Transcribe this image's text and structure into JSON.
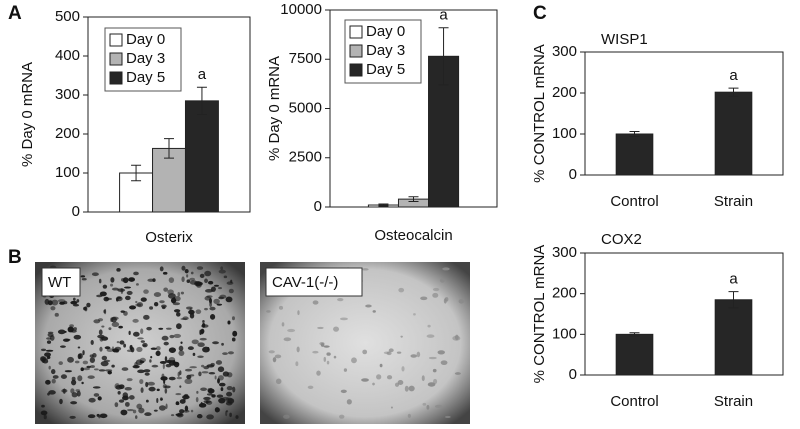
{
  "panel_labels": [
    "A",
    "B",
    "C"
  ],
  "images": [
    {
      "label": "WT"
    },
    {
      "label": "CAV-1(-/-)"
    }
  ],
  "chart_data": [
    {
      "type": "bar",
      "ylabel": "% Day 0 mRNA",
      "categories": [
        "Osterix"
      ],
      "series": [
        {
          "name": "Day 0",
          "color": "#ffffff",
          "values": [
            100
          ],
          "errors": [
            20
          ],
          "annotations": [
            null
          ]
        },
        {
          "name": "Day 3",
          "color": "#b3b3b3",
          "values": [
            163
          ],
          "errors": [
            25
          ],
          "annotations": [
            null
          ]
        },
        {
          "name": "Day 5",
          "color": "#262626",
          "values": [
            285
          ],
          "errors": [
            35
          ],
          "annotations": [
            "a"
          ]
        }
      ],
      "ylim": [
        0,
        500
      ],
      "yticks": [
        0,
        100,
        200,
        300,
        400,
        500
      ],
      "legend": "top-left"
    },
    {
      "type": "bar",
      "ylabel": "% Day 0 mRNA",
      "categories": [
        "Osteocalcin"
      ],
      "series": [
        {
          "name": "Day 0",
          "color": "#ffffff",
          "values": [
            100
          ],
          "errors": [
            50
          ],
          "annotations": [
            null
          ]
        },
        {
          "name": "Day 3",
          "color": "#b3b3b3",
          "values": [
            400
          ],
          "errors": [
            120
          ],
          "annotations": [
            null
          ]
        },
        {
          "name": "Day 5",
          "color": "#262626",
          "values": [
            7650
          ],
          "errors": [
            1450
          ],
          "annotations": [
            "a"
          ]
        }
      ],
      "ylim": [
        0,
        10000
      ],
      "yticks": [
        0,
        2500,
        5000,
        7500,
        10000
      ],
      "legend": "top-left"
    },
    {
      "type": "bar",
      "title": "WISP1",
      "ylabel": "% CONTROL mRNA",
      "categories": [
        "Control",
        "Strain"
      ],
      "values": [
        100,
        202
      ],
      "errors": [
        6,
        10
      ],
      "annotations": [
        null,
        "a"
      ],
      "color": "#262626",
      "ylim": [
        0,
        300
      ],
      "yticks": [
        0,
        100,
        200,
        300
      ]
    },
    {
      "type": "bar",
      "title": "COX2",
      "ylabel": "% CONTROL mRNA",
      "categories": [
        "Control",
        "Strain"
      ],
      "values": [
        100,
        185
      ],
      "errors": [
        4,
        20
      ],
      "annotations": [
        null,
        "a"
      ],
      "color": "#262626",
      "ylim": [
        0,
        300
      ],
      "yticks": [
        0,
        100,
        200,
        300
      ]
    }
  ]
}
